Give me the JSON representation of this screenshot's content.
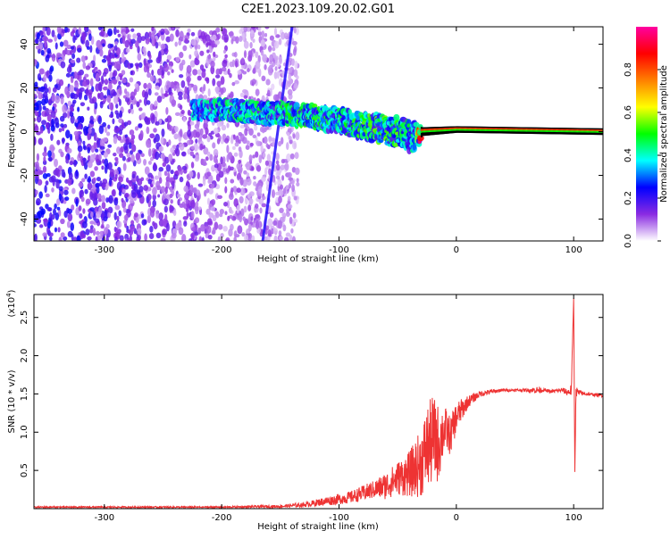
{
  "title": "C2E1.2023.109.20.02.G01",
  "chart_data": [
    {
      "type": "heatmap",
      "xlabel": "Height of straight line (km)",
      "ylabel": "Frequency (Hz)",
      "xlim": [
        -360,
        125
      ],
      "ylim": [
        -50,
        48
      ],
      "xticks": [
        -300,
        -200,
        -100,
        0,
        100
      ],
      "xtick_labels": [
        "-300",
        "-200",
        "-100",
        "0",
        "100"
      ],
      "yticks": [
        -40,
        -20,
        0,
        20,
        40
      ],
      "ytick_labels": [
        "-40",
        "-20",
        "0",
        "20",
        "40"
      ],
      "colorbar": {
        "label": "Normalized spectral amplitude",
        "range": [
          0.0,
          1.0
        ],
        "ticks": [
          0.0,
          0.2,
          0.4,
          0.6,
          0.8
        ],
        "tick_labels": [
          "0.0",
          "0.2",
          "0.4",
          "0.6",
          "0.8"
        ],
        "colors": [
          "#ffffff",
          "#8a2be2",
          "#0000ff",
          "#00ffff",
          "#00ff00",
          "#ffff00",
          "#ff8000",
          "#ff0000",
          "#ff00a0"
        ]
      },
      "signal_track": [
        {
          "x": -225,
          "center": 10,
          "width": 8,
          "amplitude": 0.3
        },
        {
          "x": -200,
          "center": 10,
          "width": 9,
          "amplitude": 0.35
        },
        {
          "x": -175,
          "center": 9,
          "width": 9,
          "amplitude": 0.35
        },
        {
          "x": -150,
          "center": 8,
          "width": 10,
          "amplitude": 0.35
        },
        {
          "x": -125,
          "center": 7,
          "width": 10,
          "amplitude": 0.4
        },
        {
          "x": -100,
          "center": 5,
          "width": 11,
          "amplitude": 0.35
        },
        {
          "x": -75,
          "center": 2,
          "width": 12,
          "amplitude": 0.4
        },
        {
          "x": -50,
          "center": 0,
          "width": 13,
          "amplitude": 0.4
        },
        {
          "x": -35,
          "center": -3,
          "width": 14,
          "amplitude": 0.35
        },
        {
          "x": -30,
          "center": 0,
          "width": 4,
          "amplitude": 0.9
        },
        {
          "x": 0,
          "center": 1,
          "width": 3,
          "amplitude": 0.95
        },
        {
          "x": 125,
          "center": 0,
          "width": 3,
          "amplitude": 0.95
        }
      ],
      "artifact_line": [
        [
          -165,
          -50
        ],
        [
          -140,
          48
        ]
      ],
      "noise_region": {
        "x_from": -360,
        "x_to": -135,
        "frequency_range": [
          -50,
          48
        ],
        "amplitude": 0.15
      }
    },
    {
      "type": "line",
      "xlabel": "Height of straight line (km)",
      "ylabel": "SNR (10 * v/v)",
      "multiplier_label": "(x10",
      "multiplier_exp": "4",
      "xlim": [
        -360,
        125
      ],
      "ylim": [
        0,
        2.8
      ],
      "xticks": [
        -300,
        -200,
        -100,
        0,
        100
      ],
      "xtick_labels": [
        "-300",
        "-200",
        "-100",
        "0",
        "100"
      ],
      "yticks": [
        0.5,
        1.0,
        1.5,
        2.0,
        2.5
      ],
      "ytick_labels": [
        "0.5",
        "1.0",
        "1.5",
        "2.0",
        "2.5"
      ],
      "series": [
        {
          "color": "#ee3333",
          "x": [
            -360,
            -300,
            -250,
            -200,
            -150,
            -130,
            -110,
            -90,
            -70,
            -60,
            -50,
            -40,
            -30,
            -25,
            -20,
            -15,
            -10,
            -5,
            0,
            10,
            20,
            30,
            40,
            50,
            60,
            70,
            75,
            80,
            90,
            95,
            98,
            100,
            101,
            102,
            103,
            110,
            125
          ],
          "y": [
            0.02,
            0.02,
            0.02,
            0.02,
            0.03,
            0.05,
            0.1,
            0.15,
            0.25,
            0.3,
            0.4,
            0.45,
            0.6,
            0.8,
            0.9,
            0.85,
            1.05,
            0.95,
            1.2,
            1.4,
            1.5,
            1.53,
            1.55,
            1.55,
            1.55,
            1.55,
            1.55,
            1.53,
            1.55,
            1.52,
            1.55,
            2.75,
            0.48,
            1.55,
            1.52,
            1.5,
            1.48
          ],
          "noise": [
            0.01,
            0.01,
            0.01,
            0.01,
            0.02,
            0.03,
            0.06,
            0.08,
            0.12,
            0.18,
            0.22,
            0.3,
            0.45,
            0.55,
            0.6,
            0.5,
            0.3,
            0.25,
            0.2,
            0.08,
            0.04,
            0.03,
            0.02,
            0.02,
            0.02,
            0.05,
            0.02,
            0.02,
            0.03,
            0.05,
            0.08,
            0.0,
            0.0,
            0.1,
            0.05,
            0.02,
            0.02
          ]
        }
      ]
    }
  ]
}
